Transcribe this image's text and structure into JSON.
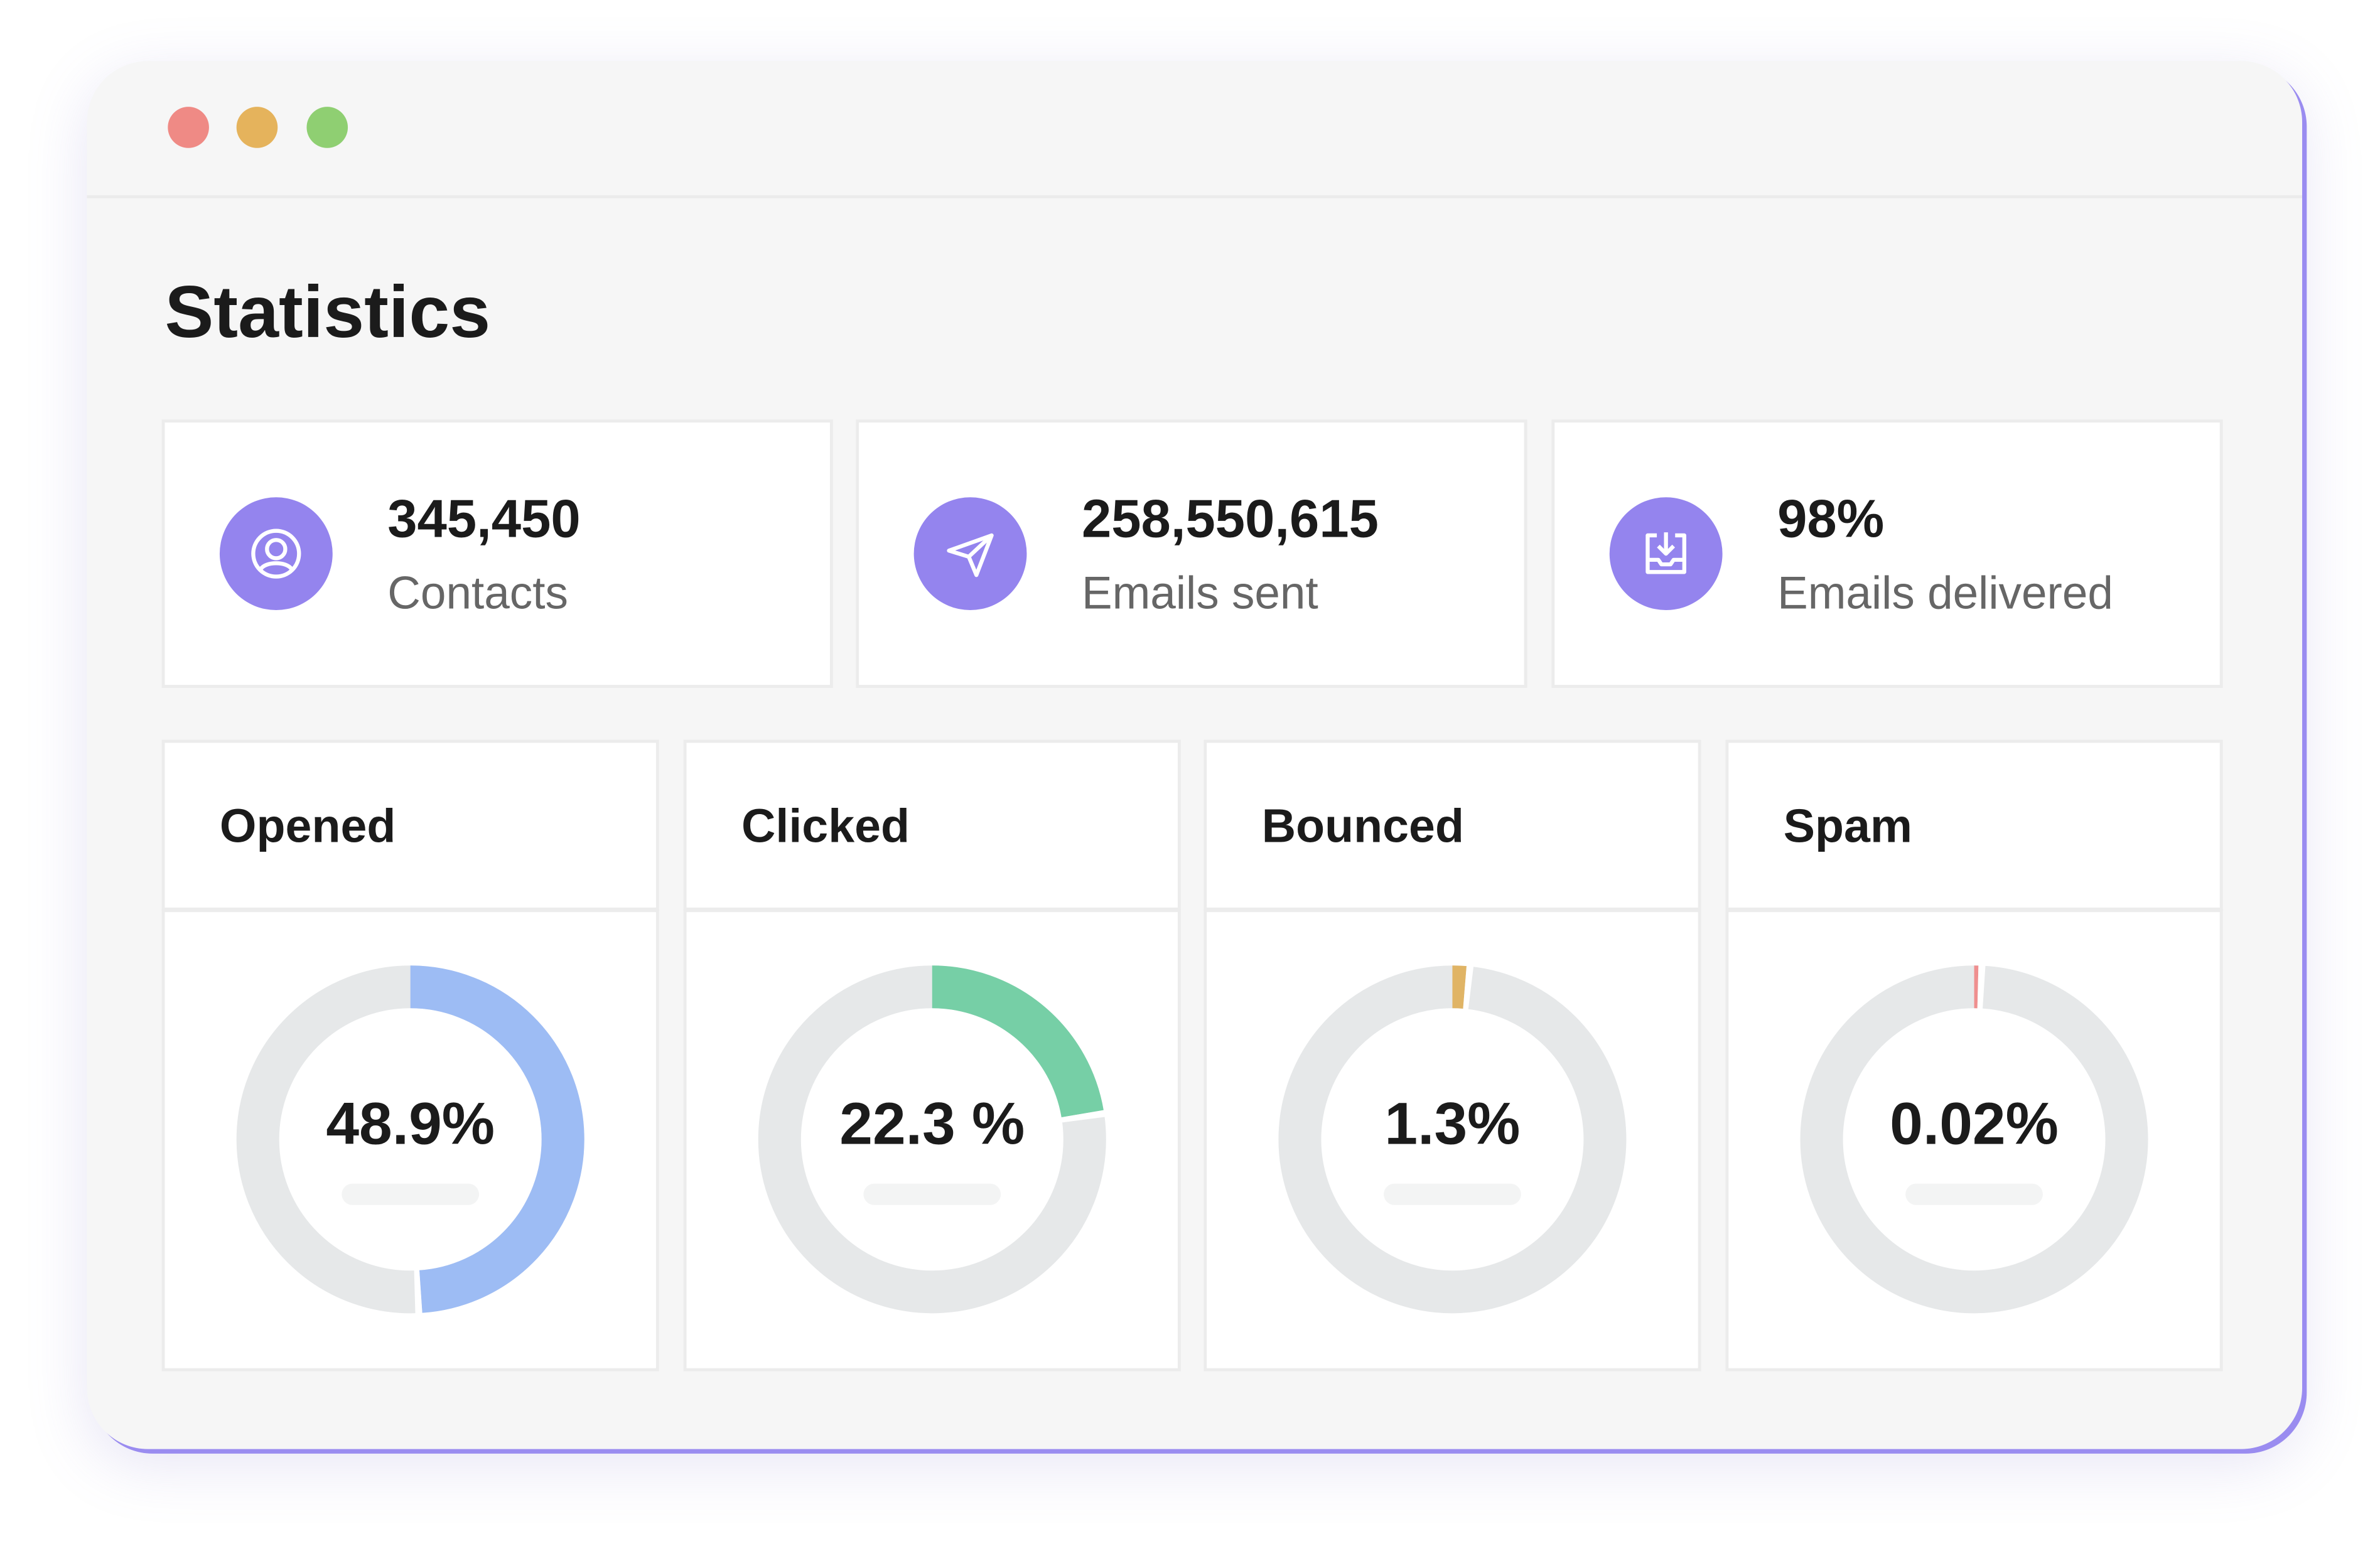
{
  "window": {
    "controls": [
      {
        "name": "close",
        "color": "#ef8a85"
      },
      {
        "name": "minimize",
        "color": "#e5b35c"
      },
      {
        "name": "maximize",
        "color": "#8fcf72"
      }
    ]
  },
  "page": {
    "title": "Statistics"
  },
  "stats": [
    {
      "value": "345,450",
      "label": "Contacts",
      "icon": "contact-icon"
    },
    {
      "value": "258,550,615",
      "label": "Emails sent",
      "icon": "send-icon"
    },
    {
      "value": "98%",
      "label": "Emails delivered",
      "icon": "inbox-download-icon"
    }
  ],
  "accent": "#9484ee",
  "chart_data": [
    {
      "type": "pie",
      "title": "Opened",
      "label": "48.9%",
      "values": [
        48.9
      ],
      "color": "#9dbcf4"
    },
    {
      "type": "pie",
      "title": "Clicked",
      "label": "22.3 %",
      "values": [
        22.3
      ],
      "color": "#76cfa6"
    },
    {
      "type": "pie",
      "title": "Bounced",
      "label": "1.3%",
      "values": [
        1.3
      ],
      "color": "#e0b465"
    },
    {
      "type": "pie",
      "title": "Spam",
      "label": "0.02%",
      "values": [
        0.02
      ],
      "color": "#ef8f8f"
    }
  ]
}
